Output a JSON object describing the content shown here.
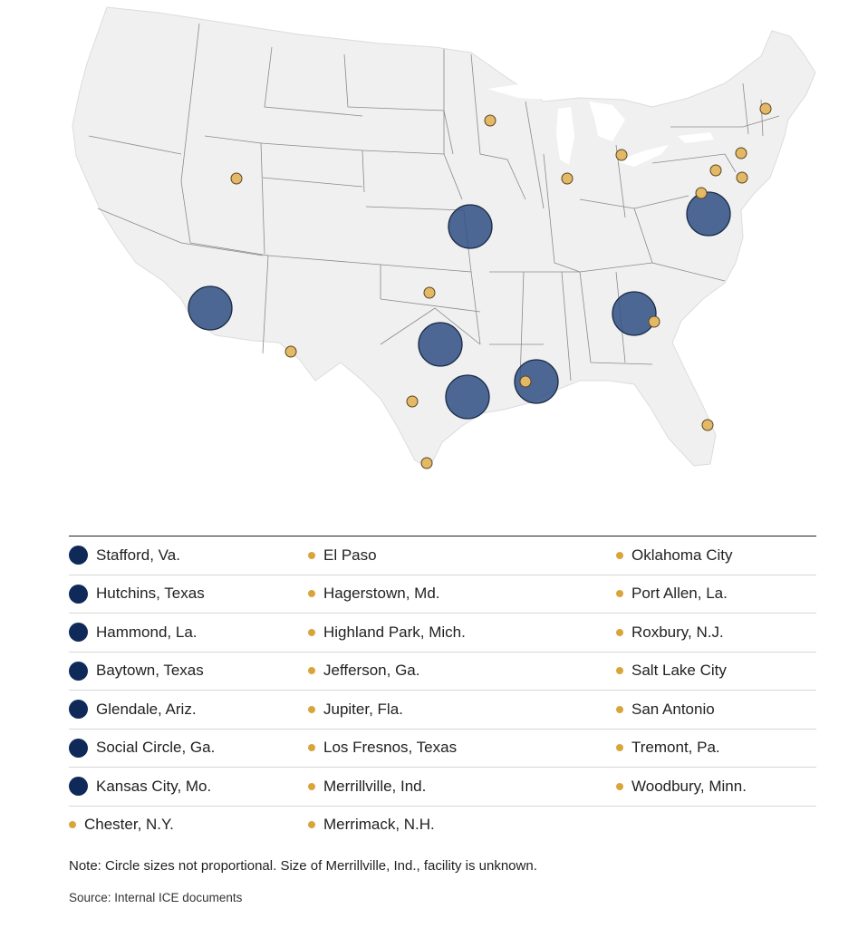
{
  "map": {
    "land_color": "#f0f0f0",
    "border_color": "#7a7a7a",
    "large_color": "#2f4f82",
    "small_color": "#e3b866",
    "large_facilities": [
      "Stafford, Va.",
      "Hutchins, Texas",
      "Hammond, La.",
      "Baytown, Texas",
      "Glendale, Ariz.",
      "Social Circle, Ga.",
      "Kansas City, Mo."
    ],
    "small_facilities": [
      "El Paso",
      "Hagerstown, Md.",
      "Highland Park, Mich.",
      "Jefferson, Ga.",
      "Jupiter, Fla.",
      "Los Fresnos, Texas",
      "Merrillville, Ind.",
      "Merrimack, N.H.",
      "Oklahoma City",
      "Port Allen, La.",
      "Roxbury, N.J.",
      "Salt Lake City",
      "San Antonio",
      "Tremont, Pa.",
      "Woodbury, Minn.",
      "Chester, N.Y."
    ]
  },
  "legend": {
    "large_color": "#0f2a58",
    "small_color": "#d9a53a",
    "rows": [
      [
        {
          "label": "Stafford, Va.",
          "kind": "large"
        },
        {
          "label": "El Paso",
          "kind": "small"
        },
        {
          "label": "Oklahoma City",
          "kind": "small"
        }
      ],
      [
        {
          "label": "Hutchins, Texas",
          "kind": "large"
        },
        {
          "label": "Hagerstown, Md.",
          "kind": "small"
        },
        {
          "label": "Port Allen, La.",
          "kind": "small"
        }
      ],
      [
        {
          "label": "Hammond, La.",
          "kind": "large"
        },
        {
          "label": "Highland Park, Mich.",
          "kind": "small"
        },
        {
          "label": "Roxbury, N.J.",
          "kind": "small"
        }
      ],
      [
        {
          "label": "Baytown, Texas",
          "kind": "large"
        },
        {
          "label": "Jefferson, Ga.",
          "kind": "small"
        },
        {
          "label": "Salt Lake City",
          "kind": "small"
        }
      ],
      [
        {
          "label": "Glendale, Ariz.",
          "kind": "large"
        },
        {
          "label": "Jupiter, Fla.",
          "kind": "small"
        },
        {
          "label": "San Antonio",
          "kind": "small"
        }
      ],
      [
        {
          "label": "Social Circle, Ga.",
          "kind": "large"
        },
        {
          "label": "Los Fresnos, Texas",
          "kind": "small"
        },
        {
          "label": "Tremont, Pa.",
          "kind": "small"
        }
      ],
      [
        {
          "label": "Kansas City, Mo.",
          "kind": "large"
        },
        {
          "label": "Merrillville, Ind.",
          "kind": "small"
        },
        {
          "label": "Woodbury, Minn.",
          "kind": "small"
        }
      ],
      [
        {
          "label": "Chester, N.Y.",
          "kind": "small"
        },
        {
          "label": "Merrimack, N.H.",
          "kind": "small"
        },
        null
      ]
    ]
  },
  "note": "Note: Circle sizes not proportional. Size of Merrillville, Ind., facility is unknown.",
  "source": "Source: Internal ICE documents"
}
